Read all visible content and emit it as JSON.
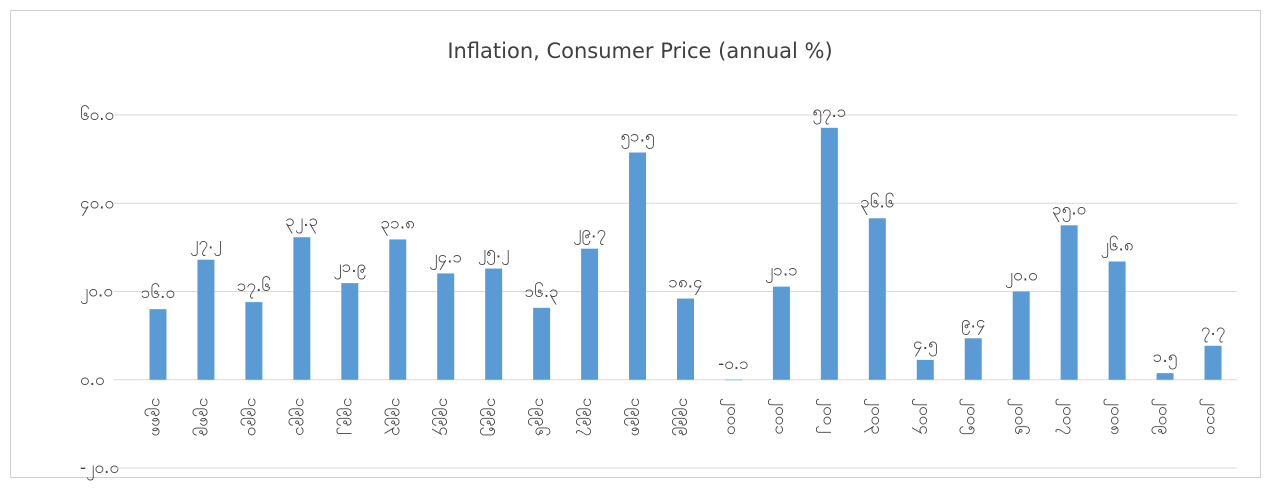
{
  "chart_data": {
    "type": "bar",
    "title": "Inflation, Consumer Price (annual %)",
    "categories": [
      "၁၉၈၈",
      "၁၉၈၉",
      "၁၉၉၀",
      "၁၉၉၁",
      "၁၉၉၂",
      "၁၉၉၃",
      "၁၉၉၄",
      "၁၉၉၅",
      "၁၉၉၆",
      "၁၉၉၇",
      "၁၉၉၈",
      "၁၉၉၉",
      "၂၀၀၀",
      "၂၀၀၁",
      "၂၀၀၂",
      "၂၀၀၃",
      "၂၀၀၄",
      "၂၀၀၅",
      "၂၀၀၆",
      "၂၀၀၇",
      "၂၀၀၈",
      "၂၀၀၉",
      "၂၀၁၀"
    ],
    "values": [
      16.0,
      27.2,
      17.6,
      32.3,
      21.9,
      31.8,
      24.1,
      25.2,
      16.3,
      29.7,
      51.5,
      18.4,
      -0.1,
      21.1,
      57.1,
      36.6,
      4.5,
      9.4,
      20.0,
      35.0,
      26.8,
      1.5,
      7.7
    ],
    "value_labels": [
      "၁၆.၀",
      "၂၇.၂",
      "၁၇.၆",
      "၃၂.၃",
      "၂၁.၉",
      "၃၁.၈",
      "၂၄.၁",
      "၂၅.၂",
      "၁၆.၃",
      "၂၉.၇",
      "၅၁.၅",
      "၁၈.၄",
      "-၀.၁",
      "၂၁.၁",
      "၅၇.၁",
      "၃၆.၆",
      "၄.၅",
      "၉.၄",
      "၂၀.၀",
      "၃၅.၀",
      "၂၆.၈",
      "၁.၅",
      "၇.၇"
    ],
    "color": "#5b9bd5",
    "ylim": [
      -20,
      60
    ],
    "yticks": [
      {
        "value": -20,
        "label": "-၂၀.၀"
      },
      {
        "value": 0,
        "label": "၀.၀"
      },
      {
        "value": 20,
        "label": "၂၀.၀"
      },
      {
        "value": 40,
        "label": "၄၀.၀"
      },
      {
        "value": 60,
        "label": "၆၀.၀"
      }
    ],
    "grid": true
  }
}
